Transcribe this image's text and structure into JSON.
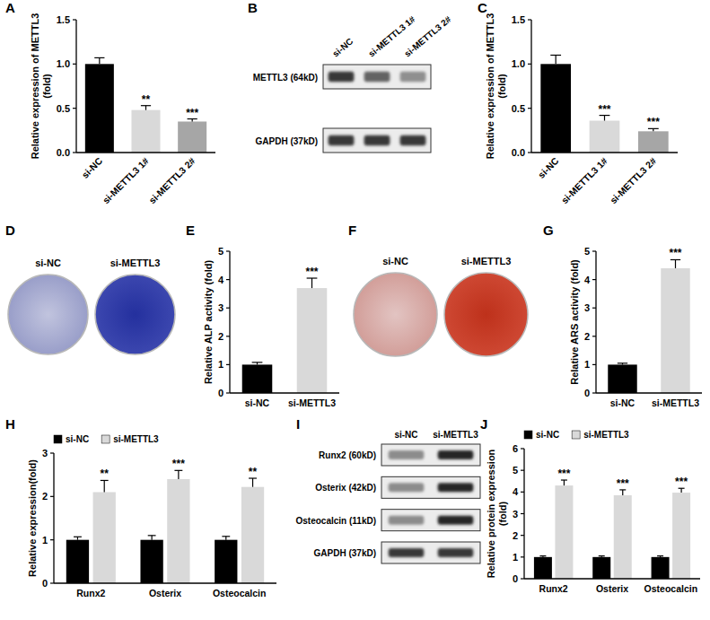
{
  "chart_data": [
    {
      "label": "A",
      "type": "bar",
      "y_label": "Relative expression of METTL3 (fold)",
      "categories": [
        "si-NC",
        "si-METTL3 1#",
        "si-METTL3 2#"
      ],
      "values": [
        1.0,
        0.48,
        0.35
      ],
      "errors": [
        0.07,
        0.05,
        0.03
      ],
      "significance": [
        null,
        "**",
        "***"
      ],
      "colors": [
        "#000000",
        "#d9d9d9",
        "#a6a6a6"
      ],
      "ylim": [
        0,
        1.5
      ],
      "yticks": [
        {
          "value": 0,
          "label": "0.0"
        },
        {
          "value": 0.5,
          "label": "0.5"
        },
        {
          "value": 1,
          "label": "1.0"
        },
        {
          "value": 1.5,
          "label": "1.5"
        }
      ]
    },
    {
      "label": "B",
      "type": "blot",
      "lanes": [
        "si-NC",
        "si-METTL3 1#",
        "si-METTL3 2#"
      ],
      "rows": [
        "METTL3 (64kD)",
        "GAPDH (37kD)"
      ]
    },
    {
      "label": "C",
      "type": "bar",
      "y_label": "Relative expression of METTL3 (fold)",
      "categories": [
        "si-NC",
        "si-METTL3 1#",
        "si-METTL3 2#"
      ],
      "values": [
        1.0,
        0.36,
        0.24
      ],
      "errors": [
        0.1,
        0.06,
        0.03
      ],
      "significance": [
        null,
        "***",
        "***"
      ],
      "colors": [
        "#000000",
        "#d9d9d9",
        "#a6a6a6"
      ],
      "ylim": [
        0,
        1.5
      ],
      "yticks": [
        {
          "value": 0,
          "label": "0.0"
        },
        {
          "value": 0.5,
          "label": "0.5"
        },
        {
          "value": 1,
          "label": "1.0"
        },
        {
          "value": 1.5,
          "label": "1.5"
        }
      ]
    },
    {
      "label": "D",
      "type": "stain",
      "color": "#2633a6",
      "samples": [
        "si-NC",
        "si-METTL3"
      ]
    },
    {
      "label": "E",
      "type": "bar",
      "y_label": "Relative ALP activity (fold)",
      "categories": [
        "si-NC",
        "si-METTL3"
      ],
      "values": [
        1.0,
        3.7
      ],
      "errors": [
        0.08,
        0.35
      ],
      "significance": [
        null,
        "***"
      ],
      "colors": [
        "#000000",
        "#d9d9d9"
      ],
      "ylim": [
        0,
        5
      ],
      "yticks": [
        0,
        1,
        2,
        3,
        4,
        5
      ]
    },
    {
      "label": "F",
      "type": "stain",
      "color": "#c8341c",
      "samples": [
        "si-NC",
        "si-METTL3"
      ]
    },
    {
      "label": "G",
      "type": "bar",
      "y_label": "Relative ARS activity (fold)",
      "categories": [
        "si-NC",
        "si-METTL3"
      ],
      "values": [
        1.0,
        4.4
      ],
      "errors": [
        0.05,
        0.3
      ],
      "significance": [
        null,
        "***"
      ],
      "colors": [
        "#000000",
        "#d9d9d9"
      ],
      "ylim": [
        0,
        5
      ],
      "yticks": [
        0,
        1,
        2,
        3,
        4,
        5
      ]
    },
    {
      "label": "H",
      "type": "grouped_bar",
      "y_label": "Relative expression(fold)",
      "categories": [
        "Runx2",
        "Osterix",
        "Osteocalcin"
      ],
      "series": [
        {
          "name": "si-NC",
          "color": "#000000",
          "values": [
            1.0,
            1.0,
            1.0
          ],
          "errors": [
            0.07,
            0.1,
            0.08
          ]
        },
        {
          "name": "si-METTL3",
          "color": "#d9d9d9",
          "values": [
            2.1,
            2.4,
            2.22
          ],
          "errors": [
            0.27,
            0.2,
            0.2
          ],
          "significance": [
            "**",
            "***",
            "**"
          ]
        }
      ],
      "legend": "top-left",
      "ylim": [
        0,
        3
      ],
      "yticks": [
        0,
        1,
        2,
        3
      ]
    },
    {
      "label": "I",
      "type": "blot",
      "lanes": [
        "si-NC",
        "si-METTL3"
      ],
      "rows": [
        "Runx2 (60kD)",
        "Osterix (42kD)",
        "Osteocalcin (11kD)",
        "GAPDH (37kD)"
      ]
    },
    {
      "label": "J",
      "type": "grouped_bar",
      "y_label": "Relative protein expression(fold)",
      "categories": [
        "Runx2",
        "Osterix",
        "Osteocalcin"
      ],
      "series": [
        {
          "name": "si-NC",
          "color": "#000000",
          "values": [
            1.0,
            1.0,
            1.0
          ],
          "errors": [
            0.05,
            0.05,
            0.05
          ]
        },
        {
          "name": "si-METTL3",
          "color": "#d9d9d9",
          "values": [
            4.3,
            3.85,
            3.97
          ],
          "errors": [
            0.25,
            0.25,
            0.2
          ],
          "significance": [
            "***",
            "***",
            "***"
          ]
        }
      ],
      "legend": "top-left",
      "ylim": [
        0,
        6
      ],
      "yticks": [
        0,
        1,
        2,
        3,
        4,
        5,
        6
      ]
    }
  ]
}
